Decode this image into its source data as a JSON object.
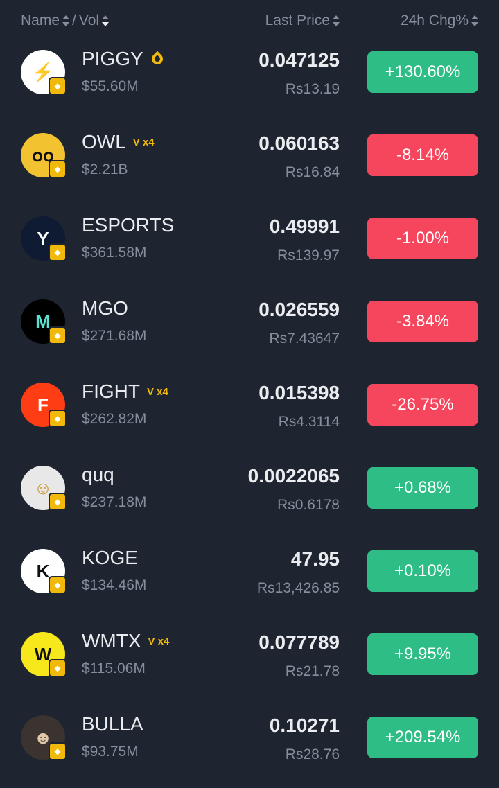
{
  "header": {
    "name": "Name",
    "separator": "/",
    "vol": "Vol",
    "last_price": "Last Price",
    "change": "24h Chg%"
  },
  "colors": {
    "up": "#2ebd85",
    "down": "#f6465d",
    "chain_badge": "#f0b90b"
  },
  "rows": [
    {
      "symbol": "PIGGY",
      "tag": "drop-icon",
      "vol": "$55.60M",
      "price": "0.047125",
      "fiat": "Rs13.19",
      "change": "+130.60%",
      "dir": "up",
      "logo_bg": "#ffffff",
      "logo_fg": "#f0b90b",
      "logo_text": "⚡"
    },
    {
      "symbol": "OWL",
      "tag": "V x4",
      "vol": "$2.21B",
      "price": "0.060163",
      "fiat": "Rs16.84",
      "change": "-8.14%",
      "dir": "down",
      "logo_bg": "#f3c230",
      "logo_fg": "#111",
      "logo_text": "oo"
    },
    {
      "symbol": "ESPORTS",
      "tag": "",
      "vol": "$361.58M",
      "price": "0.49991",
      "fiat": "Rs139.97",
      "change": "-1.00%",
      "dir": "down",
      "logo_bg": "#0f1a33",
      "logo_fg": "#fff",
      "logo_text": "Y"
    },
    {
      "symbol": "MGO",
      "tag": "",
      "vol": "$271.68M",
      "price": "0.026559",
      "fiat": "Rs7.43647",
      "change": "-3.84%",
      "dir": "down",
      "logo_bg": "#000",
      "logo_fg": "#5ce1d4",
      "logo_text": "M"
    },
    {
      "symbol": "FIGHT",
      "tag": "V x4",
      "vol": "$262.82M",
      "price": "0.015398",
      "fiat": "Rs4.3114",
      "change": "-26.75%",
      "dir": "down",
      "logo_bg": "#ff3d14",
      "logo_fg": "#fff",
      "logo_text": "F"
    },
    {
      "symbol": "quq",
      "tag": "",
      "vol": "$237.18M",
      "price": "0.0022065",
      "fiat": "Rs0.6178",
      "change": "+0.68%",
      "dir": "up",
      "logo_bg": "#e8e8e8",
      "logo_fg": "#c9962c",
      "logo_text": "☺"
    },
    {
      "symbol": "KOGE",
      "tag": "",
      "vol": "$134.46M",
      "price": "47.95",
      "fiat": "Rs13,426.85",
      "change": "+0.10%",
      "dir": "up",
      "logo_bg": "#ffffff",
      "logo_fg": "#111",
      "logo_text": "K"
    },
    {
      "symbol": "WMTX",
      "tag": "V x4",
      "vol": "$115.06M",
      "price": "0.077789",
      "fiat": "Rs21.78",
      "change": "+9.95%",
      "dir": "up",
      "logo_bg": "#f7e81c",
      "logo_fg": "#111",
      "logo_text": "W"
    },
    {
      "symbol": "BULLA",
      "tag": "",
      "vol": "$93.75M",
      "price": "0.10271",
      "fiat": "Rs28.76",
      "change": "+209.54%",
      "dir": "up",
      "logo_bg": "#3a3330",
      "logo_fg": "#e0c8a8",
      "logo_text": "☻"
    }
  ]
}
